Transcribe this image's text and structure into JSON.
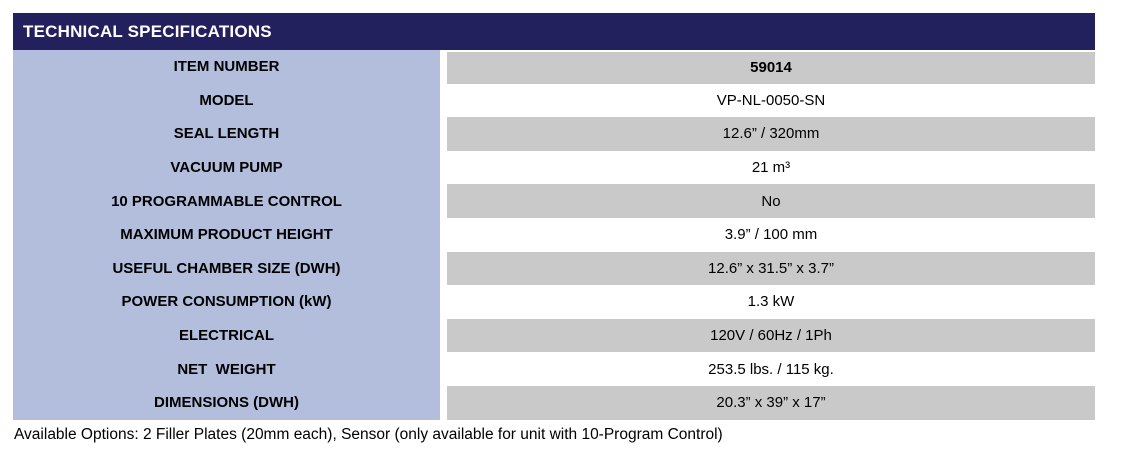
{
  "header": {
    "title": "TECHNICAL SPECIFICATIONS"
  },
  "table": {
    "rows": [
      {
        "label": "ITEM NUMBER",
        "value": "59014",
        "bold_value": true
      },
      {
        "label": "MODEL",
        "value": "VP-NL-0050-SN",
        "bold_value": false
      },
      {
        "label": "SEAL LENGTH",
        "value": "12.6” / 320mm",
        "bold_value": false
      },
      {
        "label": "VACUUM PUMP",
        "value": "21 m³",
        "bold_value": false
      },
      {
        "label": "10 PROGRAMMABLE CONTROL",
        "value": "No",
        "bold_value": false
      },
      {
        "label": "MAXIMUM PRODUCT HEIGHT",
        "value": "3.9” / 100 mm",
        "bold_value": false
      },
      {
        "label": "USEFUL CHAMBER SIZE (DWH)",
        "value": "12.6” x 31.5” x 3.7”",
        "bold_value": false
      },
      {
        "label": "POWER CONSUMPTION (kW)",
        "value": "1.3 kW",
        "bold_value": false
      },
      {
        "label": "ELECTRICAL",
        "value": "120V / 60Hz / 1Ph",
        "bold_value": false
      },
      {
        "label": "NET  WEIGHT",
        "value": "253.5 lbs. / 115 kg.",
        "bold_value": false
      },
      {
        "label": "DIMENSIONS (DWH)",
        "value": "20.3” x 39” x 17”",
        "bold_value": false
      }
    ]
  },
  "footer": {
    "text": "Available Options: 2 Filler Plates (20mm each), Sensor (only available for unit with 10-Program Control)"
  },
  "colors": {
    "header_bg": "#23205e",
    "header_text": "#ffffff",
    "label_column_bg": "#b3bddc",
    "row_alt_bg": "#c9c9c9",
    "row_bg": "#ffffff",
    "text": "#000000"
  }
}
